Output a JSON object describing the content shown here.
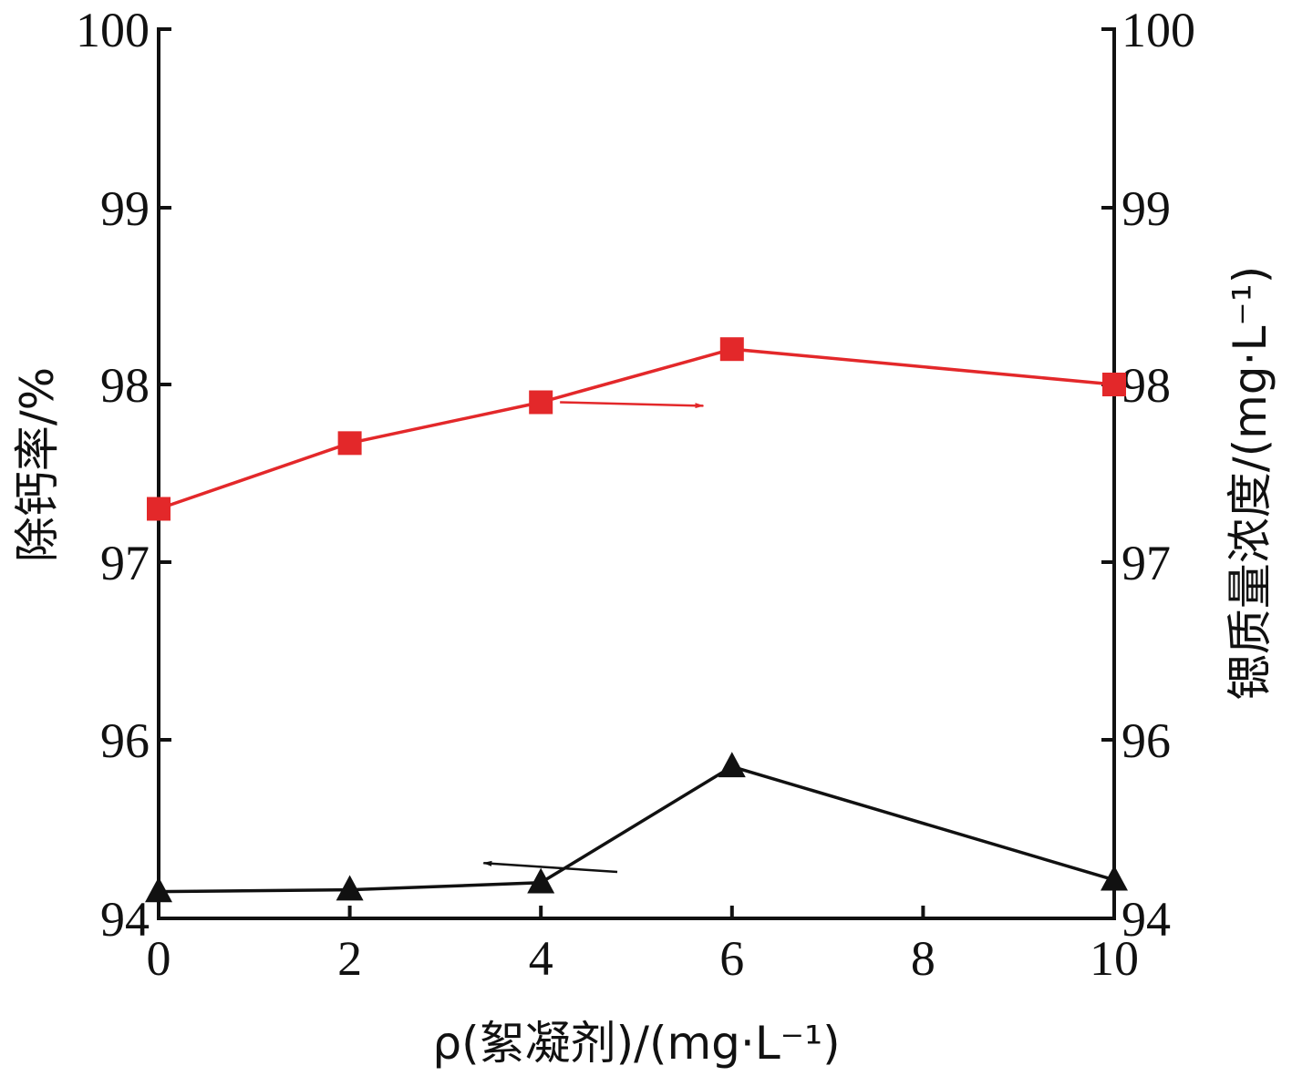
{
  "chart_data": {
    "type": "line",
    "x": [
      0,
      2,
      4,
      6,
      10
    ],
    "xlim": [
      0,
      10
    ],
    "xticks": [
      "0",
      "2",
      "4",
      "6",
      "8",
      "10"
    ],
    "xlabel": "ρ(絮凝剂)/(mg·L⁻¹)",
    "left_axis": {
      "label": "除钙率/%",
      "ylim": [
        94,
        100
      ],
      "ticks": [
        "94",
        "96",
        "97",
        "98",
        "99",
        "100"
      ]
    },
    "right_axis": {
      "label": "锶质量浓度/(mg·L⁻¹)",
      "ylim": [
        94,
        100
      ],
      "ticks": [
        "94",
        "96",
        "97",
        "98",
        "99",
        "100"
      ]
    },
    "series": [
      {
        "axis": "right",
        "marker": "square",
        "color": "#e3282a",
        "values": [
          97.3,
          97.67,
          97.9,
          98.2,
          98.0
        ]
      },
      {
        "axis": "left",
        "marker": "triangle",
        "color": "#111111",
        "values": [
          94.3,
          94.32,
          94.4,
          95.7,
          94.43
        ]
      }
    ],
    "annotations": [
      {
        "type": "arrow",
        "direction": "right",
        "series": 0,
        "color": "#e3282a",
        "from": [
          4.2,
          97.9
        ],
        "to": [
          5.7,
          97.88
        ]
      },
      {
        "type": "arrow",
        "direction": "left",
        "series": 1,
        "color": "#111111",
        "from": [
          4.8,
          94.52
        ],
        "to": [
          3.4,
          94.62
        ]
      }
    ],
    "grid": false,
    "legend": "none"
  }
}
